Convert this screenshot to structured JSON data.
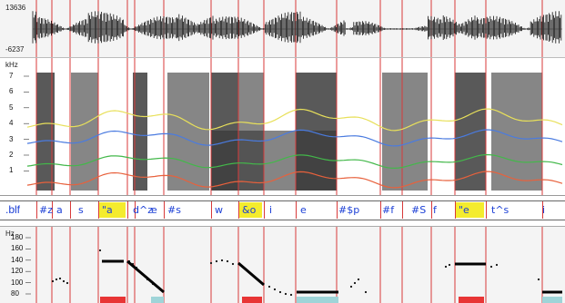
{
  "waveform": {
    "max_label": "13636",
    "min_label": "-6237"
  },
  "spectrogram": {
    "unit_label": "kHz",
    "ticks": [
      "7",
      "6",
      "5",
      "4",
      "3",
      "2",
      "1"
    ]
  },
  "tier": {
    "name": ".blf",
    "segments": [
      "#z",
      "a",
      "s",
      "\"a",
      "d^z",
      "e",
      "#s",
      "w",
      "&o",
      "i",
      "e",
      "#$p",
      "#f",
      "#S",
      "f",
      "\"e",
      "t^s",
      "i"
    ],
    "highlighted": [
      "\"a",
      "&o",
      "\"e"
    ]
  },
  "pitch": {
    "unit_label": "Hz",
    "ticks": [
      "180",
      "160",
      "140",
      "120",
      "100",
      "80"
    ]
  },
  "colors": {
    "boundary": "#d83a3a",
    "label_text": "#1b3fd6",
    "highlight": "#f4ec2e",
    "panel_bg": "#f4f4f4",
    "formant_f1": "#e8613c",
    "formant_f2": "#4a7be0",
    "formant_f3": "#43b84a",
    "formant_f4": "#e8e05a"
  }
}
